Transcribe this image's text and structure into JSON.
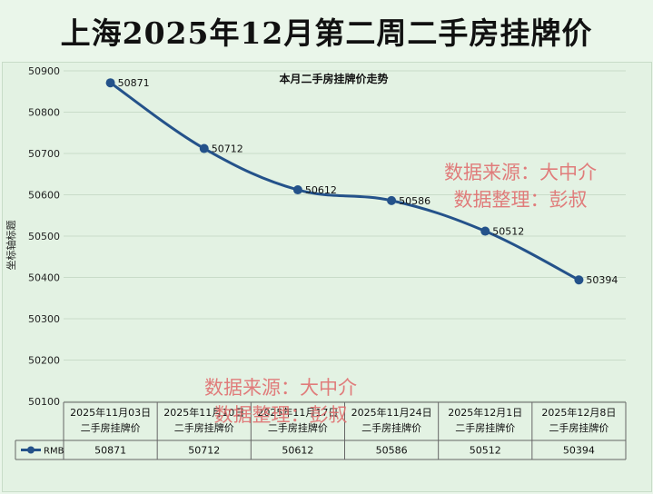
{
  "banner": {
    "title": "上海2025年12月第二周二手房挂牌价"
  },
  "watermarks": [
    {
      "line1": "数据来源：大中介",
      "line2": "数据整理：彭叔"
    },
    {
      "line1": "数据来源：大中介",
      "line2": "数据整理：彭叔"
    }
  ],
  "colors": {
    "line": "#24528a",
    "marker": "#24528a",
    "background": "#e3f2e3",
    "watermark": "#e07070"
  },
  "chart_data": {
    "type": "line",
    "title": "本月二手房挂牌价走势",
    "ylabel": "坐标轴标题",
    "ylim": [
      50100,
      50900
    ],
    "yticks": [
      50100,
      50200,
      50300,
      50400,
      50500,
      50600,
      50700,
      50800,
      50900
    ],
    "grid": true,
    "categories": [
      [
        "2025年11月03日",
        "二手房挂牌价"
      ],
      [
        "2025年11月10日",
        "二手房挂牌价"
      ],
      [
        "2025年11月17日",
        "二手房挂牌价"
      ],
      [
        "2025年11月24日",
        "二手房挂牌价"
      ],
      [
        "2025年12月1日",
        "二手房挂牌价"
      ],
      [
        "2025年12月8日",
        "二手房挂牌价"
      ]
    ],
    "series": [
      {
        "name": "RMB",
        "values": [
          50871,
          50712,
          50612,
          50586,
          50512,
          50394
        ]
      }
    ],
    "data_table": true
  }
}
